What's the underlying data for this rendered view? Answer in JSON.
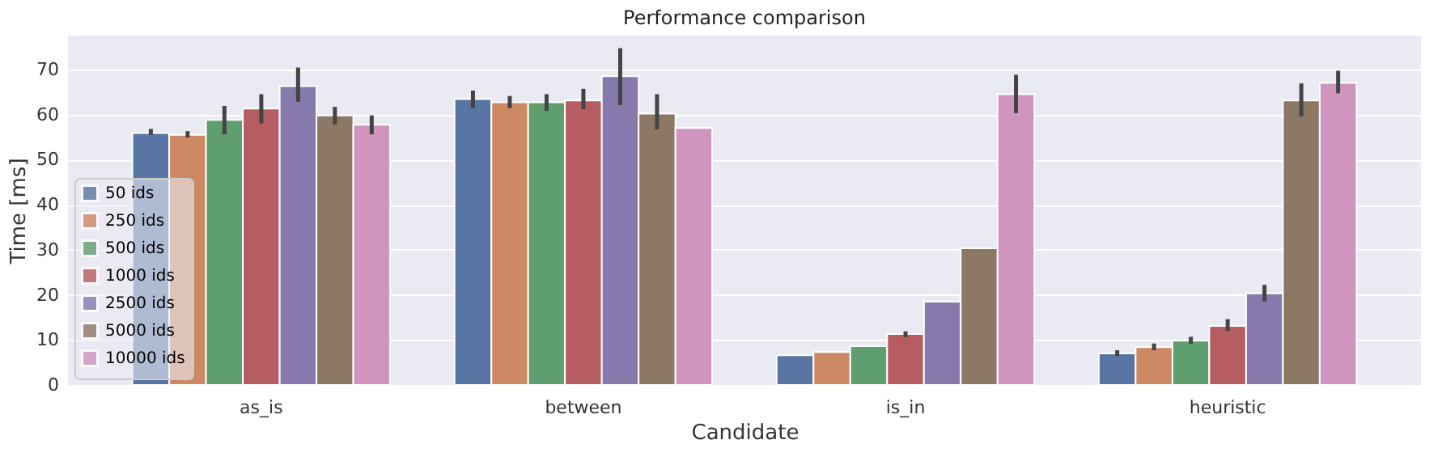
{
  "chart_data": {
    "type": "bar",
    "title": "Performance comparison",
    "xlabel": "Candidate",
    "ylabel": "Time [ms]",
    "categories": [
      "as_is",
      "between",
      "is_in",
      "heuristic"
    ],
    "series": [
      {
        "name": "50 ids",
        "color": "#5875a4",
        "values": [
          55.9,
          63.4,
          6.6,
          7.0
        ],
        "errors": [
          [
            55.5,
            56.8
          ],
          [
            61.4,
            65.3
          ],
          null,
          [
            6.4,
            7.7
          ]
        ]
      },
      {
        "name": "250 ids",
        "color": "#cc8963",
        "values": [
          55.5,
          62.7,
          7.3,
          8.4
        ],
        "errors": [
          [
            54.9,
            56.3
          ],
          [
            61.4,
            64.1
          ],
          null,
          [
            7.7,
            9.2
          ]
        ]
      },
      {
        "name": "500 ids",
        "color": "#5f9e6e",
        "values": [
          58.8,
          62.7,
          8.6,
          9.8
        ],
        "errors": [
          [
            55.6,
            61.9
          ],
          [
            60.8,
            64.5
          ],
          null,
          [
            9.1,
            10.7
          ]
        ]
      },
      {
        "name": "1000 ids",
        "color": "#b55d60",
        "values": [
          61.3,
          63.1,
          11.3,
          13.1
        ],
        "errors": [
          [
            58.0,
            64.5
          ],
          [
            61.2,
            65.7
          ],
          [
            10.6,
            11.9
          ],
          [
            12.0,
            14.6
          ]
        ]
      },
      {
        "name": "2500 ids",
        "color": "#857aab",
        "values": [
          66.3,
          68.5,
          18.5,
          20.3
        ],
        "errors": [
          [
            62.8,
            70.4
          ],
          [
            62.1,
            74.7
          ],
          null,
          [
            18.5,
            22.2
          ]
        ]
      },
      {
        "name": "5000 ids",
        "color": "#8d7866",
        "values": [
          59.8,
          60.2,
          30.3,
          63.1
        ],
        "errors": [
          [
            57.8,
            61.7
          ],
          [
            56.7,
            64.5
          ],
          null,
          [
            59.6,
            66.9
          ]
        ]
      },
      {
        "name": "10000 ids",
        "color": "#d095bf",
        "values": [
          57.7,
          57.0,
          64.5,
          67.0
        ],
        "errors": [
          [
            55.6,
            59.8
          ],
          null,
          [
            60.3,
            68.8
          ],
          [
            64.7,
            69.7
          ]
        ]
      }
    ],
    "ylim": [
      0,
      77.5
    ],
    "yticks": [
      0,
      10,
      20,
      30,
      40,
      50,
      60,
      70
    ],
    "grid": "y",
    "legend": "bottom left"
  }
}
